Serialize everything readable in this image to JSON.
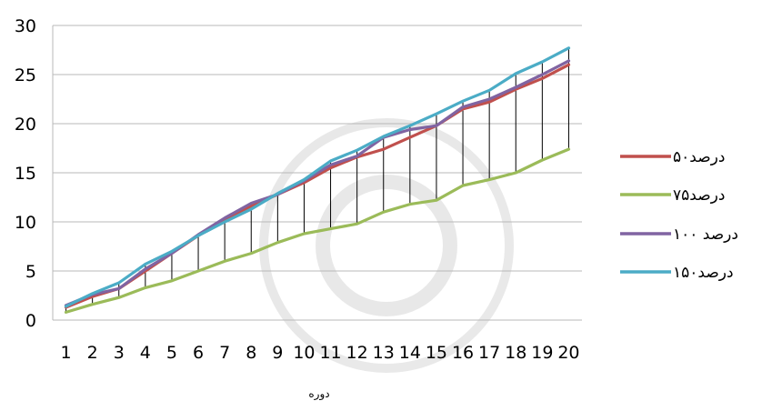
{
  "chart_data": {
    "type": "line",
    "xlabel": "دوره",
    "ylabel": "",
    "ylim": [
      0,
      30
    ],
    "yticks": [
      0,
      5,
      10,
      15,
      20,
      25,
      30
    ],
    "x": [
      1,
      2,
      3,
      4,
      5,
      6,
      7,
      8,
      9,
      10,
      11,
      12,
      13,
      14,
      15,
      16,
      17,
      18,
      19,
      20
    ],
    "grid": "horizontal",
    "legend": "right",
    "drop_lines": true,
    "series": [
      {
        "name": "۵۰درصد",
        "color": "#c0504d",
        "values": [
          1.3,
          2.4,
          3.2,
          5.0,
          6.8,
          8.6,
          10.2,
          11.6,
          12.8,
          14.0,
          15.5,
          16.6,
          17.4,
          18.6,
          19.8,
          21.5,
          22.2,
          23.5,
          24.6,
          26.0
        ]
      },
      {
        "name": "۷۵درصد",
        "color": "#9bbb59",
        "values": [
          0.8,
          1.6,
          2.3,
          3.3,
          4.0,
          5.0,
          6.0,
          6.8,
          7.9,
          8.8,
          9.3,
          9.8,
          11.0,
          11.8,
          12.2,
          13.7,
          14.3,
          15.0,
          16.3,
          17.4
        ]
      },
      {
        "name": "۱۰۰ درصد",
        "color": "#8064a2",
        "values": [
          1.5,
          2.6,
          3.2,
          5.2,
          6.8,
          8.7,
          10.4,
          11.9,
          12.8,
          14.2,
          15.8,
          16.7,
          18.6,
          19.4,
          19.8,
          21.7,
          22.5,
          23.7,
          25.0,
          26.4
        ]
      },
      {
        "name": "۱۵۰درصد",
        "color": "#4bacc6",
        "values": [
          1.4,
          2.7,
          3.8,
          5.7,
          7.0,
          8.6,
          10.0,
          11.3,
          12.9,
          14.3,
          16.2,
          17.3,
          18.7,
          19.8,
          21.0,
          22.3,
          23.4,
          25.1,
          26.3,
          27.7
        ]
      }
    ]
  }
}
